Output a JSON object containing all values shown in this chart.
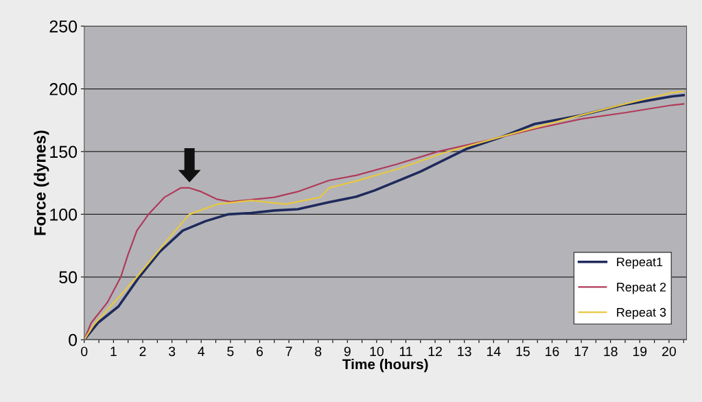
{
  "chart_data": {
    "type": "line",
    "xlabel": "Time (hours)",
    "ylabel": "Force (dynes)",
    "xlim": [
      0,
      20.6
    ],
    "ylim": [
      0,
      250
    ],
    "xticks": [
      0,
      {
        "value": 0.5,
        "label": null
      },
      1,
      {
        "value": 1.5,
        "label": null
      },
      2,
      {
        "value": 2.5,
        "label": null
      },
      3,
      {
        "value": 3.5,
        "label": null
      },
      4,
      {
        "value": 4.5,
        "label": null
      },
      5,
      {
        "value": 5.5,
        "label": null
      },
      6,
      {
        "value": 6.5,
        "label": null
      },
      7,
      {
        "value": 7.5,
        "label": null
      },
      8,
      {
        "value": 8.5,
        "label": null
      },
      9,
      {
        "value": 9.5,
        "label": null
      },
      10,
      {
        "value": 10.5,
        "label": null
      },
      11,
      {
        "value": 11.5,
        "label": null
      },
      12,
      {
        "value": 12.5,
        "label": null
      },
      13,
      {
        "value": 13.5,
        "label": null
      },
      14,
      {
        "value": 14.5,
        "label": null
      },
      15,
      {
        "value": 15.5,
        "label": null
      },
      16,
      {
        "value": 16.5,
        "label": null
      },
      17,
      {
        "value": 17.5,
        "label": null
      },
      18,
      {
        "value": 18.5,
        "label": null
      },
      19,
      {
        "value": 19.5,
        "label": null
      },
      20,
      {
        "value": 20.5,
        "label": null
      }
    ],
    "yticks": [
      0,
      50,
      100,
      150,
      200,
      250
    ],
    "grid": "y",
    "legend": "bottom right",
    "marker": "none",
    "line_style": "solid",
    "series": [
      {
        "name": "Repeat1",
        "color": "#1f2a5c",
        "x": [
          0,
          0.47,
          1.17,
          1.88,
          2.58,
          3.37,
          4.15,
          4.93,
          5.7,
          6.5,
          7.3,
          8.37,
          9.3,
          9.93,
          11.5,
          13.06,
          14.2,
          15.4,
          17.0,
          18.5,
          20.1,
          20.5
        ],
        "values": [
          0,
          13.5,
          26.5,
          50,
          70,
          87,
          94.5,
          100,
          101,
          103,
          104,
          109.6,
          114,
          119,
          134,
          152,
          161,
          172,
          179,
          187.5,
          194,
          195
        ]
      },
      {
        "name": "Repeat 2",
        "color": "#b03a5a",
        "x": [
          0,
          0.24,
          0.8,
          1.25,
          1.5,
          1.8,
          2.2,
          2.74,
          3.3,
          3.6,
          4.0,
          4.54,
          5.0,
          6.5,
          7.3,
          8.37,
          9.3,
          10.7,
          12.1,
          13.8,
          15.4,
          17.0,
          18.5,
          20.1,
          20.5
        ],
        "values": [
          0,
          13.5,
          30,
          50,
          68,
          87,
          100,
          113.5,
          121,
          121,
          118,
          112,
          110,
          113.5,
          118,
          127,
          131,
          140,
          150,
          159,
          168,
          176,
          181,
          187,
          188
        ]
      },
      {
        "name": "Repeat 3",
        "color": "#e8c840",
        "x": [
          0,
          0.33,
          1.34,
          1.8,
          2.9,
          3.6,
          4.55,
          5.7,
          6.9,
          8.06,
          8.37,
          9.3,
          10.7,
          12.3,
          14.6,
          17.0,
          18.5,
          20.1,
          20.5
        ],
        "values": [
          0,
          12,
          38,
          50,
          81,
          100,
          108,
          111,
          108,
          113.5,
          121,
          126.5,
          136,
          149,
          164,
          179,
          188,
          197,
          198
        ]
      }
    ]
  }
}
